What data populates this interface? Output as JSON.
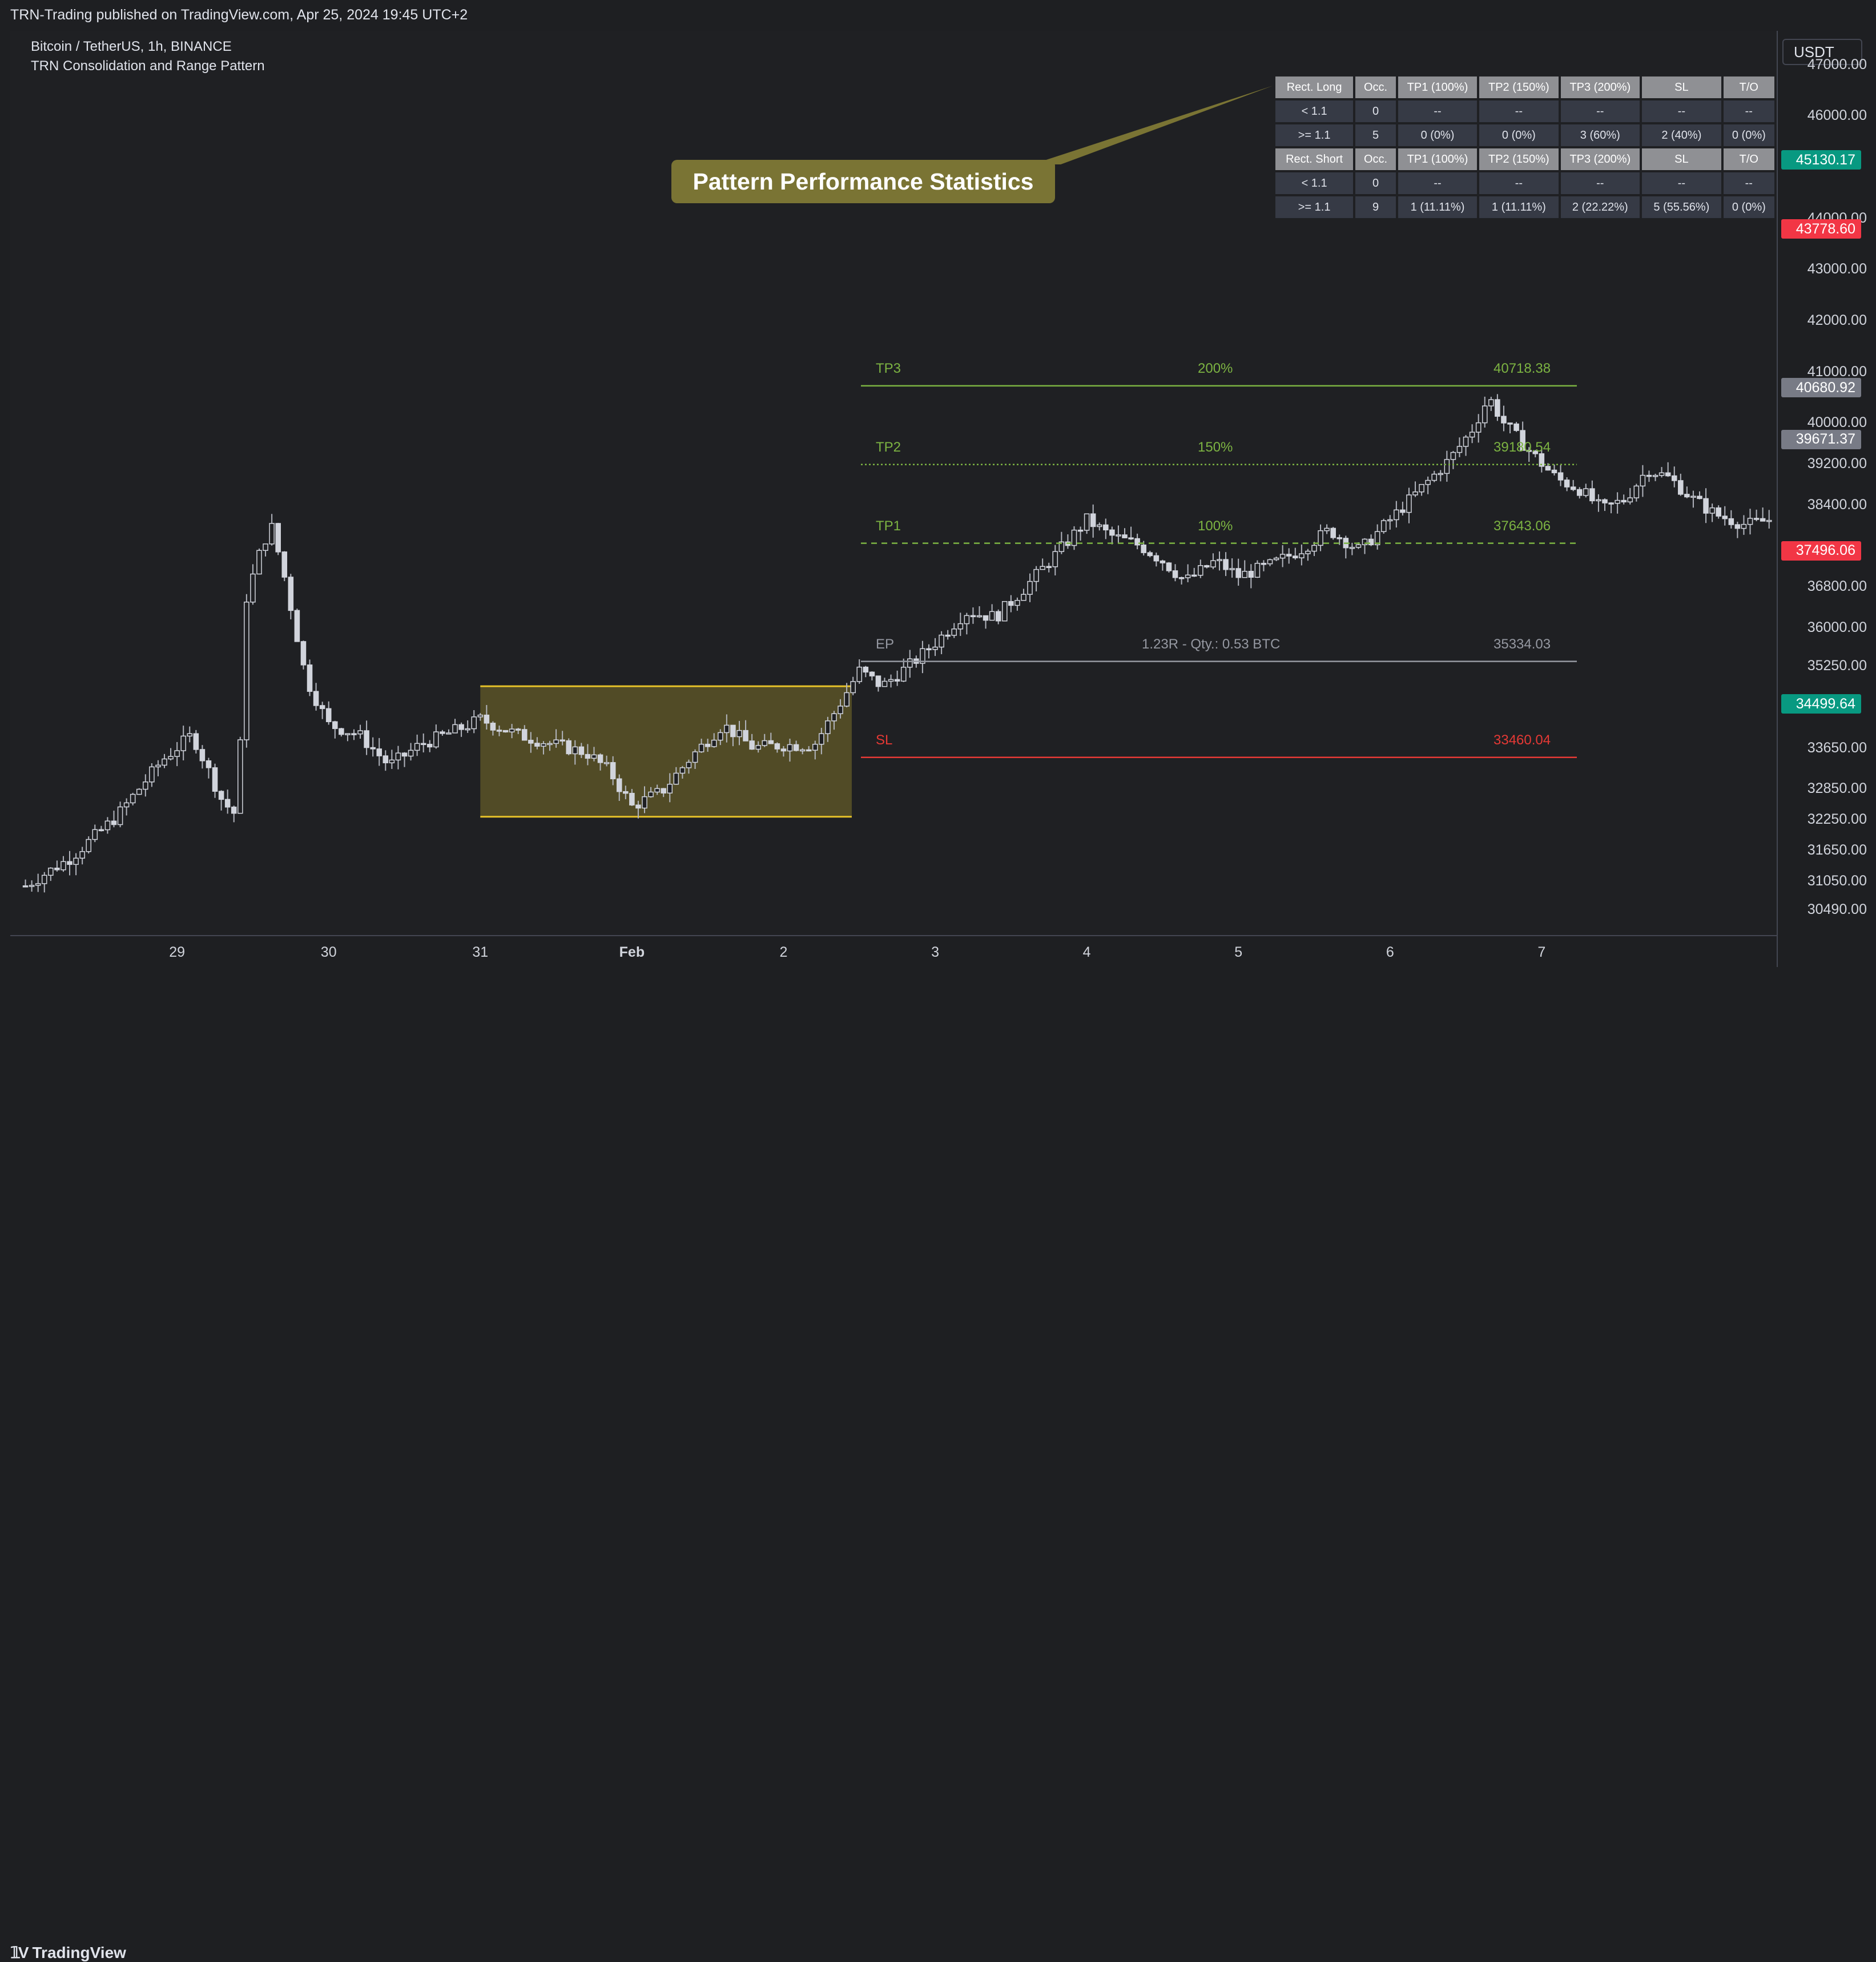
{
  "header": {
    "published": "TRN-Trading published on TradingView.com, Apr 25, 2024 19:45 UTC+2"
  },
  "legend": {
    "symbol": "Bitcoin / TetherUS, 1h, BINANCE",
    "indicator": "TRN Consolidation and Range Pattern"
  },
  "callout": {
    "text": "Pattern Performance Statistics",
    "color": "#7a7434"
  },
  "stats_table": {
    "long_header": [
      "Rect. Long",
      "Occ.",
      "TP1 (100%)",
      "TP2 (150%)",
      "TP3 (200%)",
      "SL",
      "T/O"
    ],
    "long_rows": [
      [
        "< 1.1",
        "0",
        "--",
        "--",
        "--",
        "--",
        "--"
      ],
      [
        ">= 1.1",
        "5",
        "0 (0%)",
        "0 (0%)",
        "3 (60%)",
        "2 (40%)",
        "0 (0%)"
      ]
    ],
    "short_header": [
      "Rect. Short",
      "Occ.",
      "TP1 (100%)",
      "TP2 (150%)",
      "TP3 (200%)",
      "SL",
      "T/O"
    ],
    "short_rows": [
      [
        "< 1.1",
        "0",
        "--",
        "--",
        "--",
        "--",
        "--"
      ],
      [
        ">= 1.1",
        "9",
        "1 (11.11%)",
        "1 (11.11%)",
        "2 (22.22%)",
        "5 (55.56%)",
        "0 (0%)"
      ]
    ]
  },
  "levels": {
    "tp3": {
      "label": "TP3",
      "pct": "200%",
      "value": "40718.38",
      "price": 40718.38,
      "color": "#7cb342"
    },
    "tp2": {
      "label": "TP2",
      "pct": "150%",
      "value": "39180.54",
      "price": 39180.54,
      "color": "#7cb342"
    },
    "tp1": {
      "label": "TP1",
      "pct": "100%",
      "value": "37643.06",
      "price": 37643.06,
      "color": "#7cb342"
    },
    "ep": {
      "label": "EP",
      "note": "1.23R - Qty.: 0.53 BTC",
      "value": "35334.03",
      "price": 35334.03,
      "color": "#9598a1"
    },
    "sl": {
      "label": "SL",
      "value": "33460.04",
      "price": 33460.04,
      "color": "#e53935"
    }
  },
  "price_axis": {
    "currency": "USDT",
    "ticks": [
      "47000.00",
      "46000.00",
      "44000.00",
      "43000.00",
      "42000.00",
      "41000.00",
      "40000.00",
      "39200.00",
      "38400.00",
      "36800.00",
      "36000.00",
      "35250.00",
      "33650.00",
      "32850.00",
      "32250.00",
      "31650.00",
      "31050.00",
      "30490.00"
    ],
    "badges": [
      {
        "value": "45130.17",
        "color": "#089981"
      },
      {
        "value": "43778.60",
        "color": "#f23645"
      },
      {
        "value": "40680.92",
        "color": "#787b86"
      },
      {
        "value": "39671.37",
        "color": "#787b86"
      },
      {
        "value": "37496.06",
        "color": "#f23645"
      },
      {
        "value": "34499.64",
        "color": "#089981"
      }
    ]
  },
  "time_axis": {
    "labels": [
      "29",
      "30",
      "31",
      "Feb",
      "2",
      "3",
      "4",
      "5",
      "6",
      "7"
    ]
  },
  "footer": {
    "brand": "TradingView"
  },
  "chart_data": {
    "type": "candlestick",
    "symbol": "Bitcoin / TetherUS",
    "interval": "1h",
    "currency": "USDT",
    "x_labels": [
      "29",
      "30",
      "31",
      "Feb",
      "2",
      "3",
      "4",
      "5",
      "6",
      "7"
    ],
    "close_path": [
      {
        "day": 28.0,
        "close": 30950
      },
      {
        "day": 28.3,
        "close": 31500
      },
      {
        "day": 28.6,
        "close": 32300
      },
      {
        "day": 28.9,
        "close": 33400
      },
      {
        "day": 29.1,
        "close": 33900
      },
      {
        "day": 29.3,
        "close": 32600
      },
      {
        "day": 29.4,
        "close": 32300
      },
      {
        "day": 29.45,
        "close": 36500
      },
      {
        "day": 29.55,
        "close": 37500
      },
      {
        "day": 29.62,
        "close": 38000
      },
      {
        "day": 29.7,
        "close": 37100
      },
      {
        "day": 29.85,
        "close": 35000
      },
      {
        "day": 30.0,
        "close": 34100
      },
      {
        "day": 30.2,
        "close": 33900
      },
      {
        "day": 30.4,
        "close": 33300
      },
      {
        "day": 30.6,
        "close": 33700
      },
      {
        "day": 30.85,
        "close": 34000
      },
      {
        "day": 31.0,
        "close": 34200
      },
      {
        "day": 31.25,
        "close": 33900
      },
      {
        "day": 31.5,
        "close": 33700
      },
      {
        "day": 31.7,
        "close": 33550
      },
      {
        "day": 31.85,
        "close": 33200
      },
      {
        "day": 32.0,
        "close": 32500
      },
      {
        "day": 32.2,
        "close": 32800
      },
      {
        "day": 32.4,
        "close": 33500
      },
      {
        "day": 32.6,
        "close": 34100
      },
      {
        "day": 32.8,
        "close": 33650
      },
      {
        "day": 33.0,
        "close": 33700
      },
      {
        "day": 33.2,
        "close": 33700
      },
      {
        "day": 33.35,
        "close": 34400
      },
      {
        "day": 33.5,
        "close": 35150
      },
      {
        "day": 33.65,
        "close": 34850
      },
      {
        "day": 33.85,
        "close": 35300
      },
      {
        "day": 34.0,
        "close": 35700
      },
      {
        "day": 34.2,
        "close": 36300
      },
      {
        "day": 34.4,
        "close": 36200
      },
      {
        "day": 34.6,
        "close": 36800
      },
      {
        "day": 34.85,
        "close": 37600
      },
      {
        "day": 35.0,
        "close": 38100
      },
      {
        "day": 35.15,
        "close": 37800
      },
      {
        "day": 35.35,
        "close": 37600
      },
      {
        "day": 35.5,
        "close": 37300
      },
      {
        "day": 35.65,
        "close": 36900
      },
      {
        "day": 35.85,
        "close": 37300
      },
      {
        "day": 36.0,
        "close": 37000
      },
      {
        "day": 36.2,
        "close": 37200
      },
      {
        "day": 36.4,
        "close": 37500
      },
      {
        "day": 36.6,
        "close": 37900
      },
      {
        "day": 36.8,
        "close": 37500
      },
      {
        "day": 37.0,
        "close": 38100
      },
      {
        "day": 37.2,
        "close": 38700
      },
      {
        "day": 37.4,
        "close": 39300
      },
      {
        "day": 37.55,
        "close": 39900
      },
      {
        "day": 37.65,
        "close": 40500
      },
      {
        "day": 37.75,
        "close": 40000
      },
      {
        "day": 37.9,
        "close": 39500
      },
      {
        "day": 38.1,
        "close": 38900
      },
      {
        "day": 38.25,
        "close": 38700
      },
      {
        "day": 38.4,
        "close": 38300
      },
      {
        "day": 38.55,
        "close": 38500
      },
      {
        "day": 38.7,
        "close": 39100
      },
      {
        "day": 38.85,
        "close": 38900
      },
      {
        "day": 39.0,
        "close": 38500
      },
      {
        "day": 39.15,
        "close": 38200
      },
      {
        "day": 39.35,
        "close": 38000
      },
      {
        "day": 39.5,
        "close": 38100
      }
    ],
    "rectangle": {
      "x_start": 31.0,
      "x_end": 33.45,
      "top": 34850,
      "bottom": 32300,
      "color": "#e6c229"
    },
    "y_range": [
      30100,
      47500
    ],
    "x_range": [
      27.9,
      39.55
    ]
  }
}
